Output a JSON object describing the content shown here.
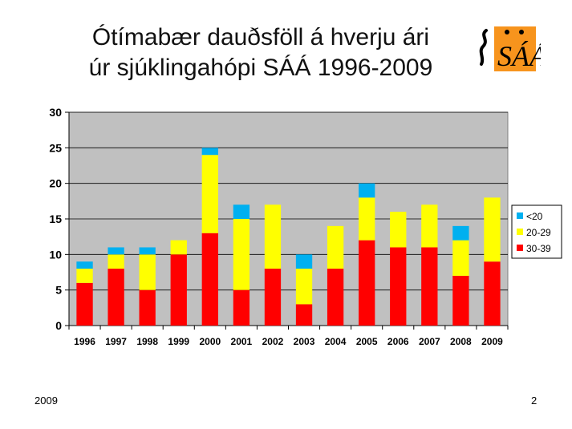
{
  "slide": {
    "title_line1": "Ótímabær dauðsföll á hverju ári",
    "title_line2": "úr sjúklingahópi SÁÁ 1996-2009",
    "footer_left": "2009",
    "footer_right": "2",
    "logo_icon": "saa-logo-icon",
    "logo_text": "SÁÁ"
  },
  "chart_data": {
    "type": "bar",
    "stacked": true,
    "title": "",
    "xlabel": "",
    "ylabel": "",
    "ylim": [
      0,
      30
    ],
    "yticks": [
      0,
      5,
      10,
      15,
      20,
      25,
      30
    ],
    "grid": true,
    "legend_position": "right",
    "plot_background": "#c0c0c0",
    "categories": [
      "1996",
      "1997",
      "1998",
      "1999",
      "2000",
      "2001",
      "2002",
      "2003",
      "2004",
      "2005",
      "2006",
      "2007",
      "2008",
      "2009"
    ],
    "series": [
      {
        "name": "30-39",
        "color": "#ff0000",
        "values": [
          6,
          8,
          5,
          10,
          13,
          5,
          8,
          3,
          8,
          12,
          11,
          11,
          7,
          9
        ]
      },
      {
        "name": "20-29",
        "color": "#ffff00",
        "values": [
          2,
          2,
          5,
          2,
          11,
          10,
          9,
          5,
          6,
          6,
          5,
          6,
          5,
          9
        ]
      },
      {
        "name": "<20",
        "color": "#00b0f0",
        "values": [
          1,
          1,
          1,
          0,
          1,
          2,
          0,
          2,
          0,
          2,
          0,
          0,
          2,
          0
        ]
      }
    ],
    "legend_order": [
      "<20",
      "20-29",
      "30-39"
    ]
  }
}
